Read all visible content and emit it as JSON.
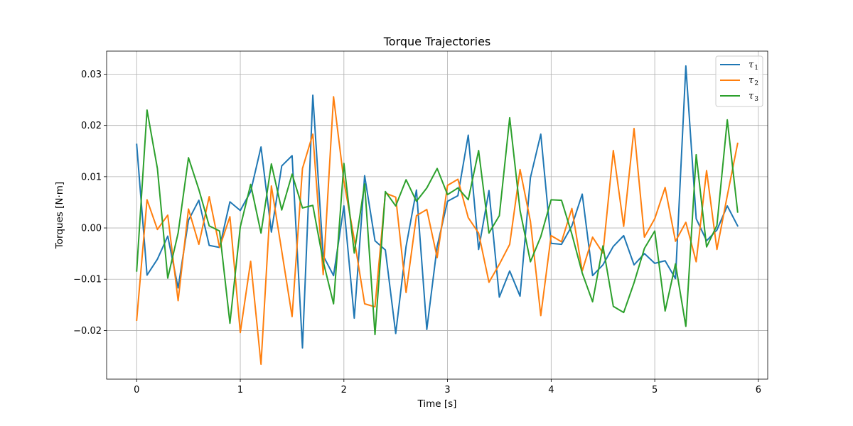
{
  "chart_data": {
    "type": "line",
    "title": "Torque Trajectories",
    "xlabel": "Time [s]",
    "ylabel": "Torques [N·m]",
    "xlim": [
      -0.29,
      6.09
    ],
    "ylim": [
      -0.0295,
      0.0345
    ],
    "xticks": [
      0,
      1,
      2,
      3,
      4,
      5,
      6
    ],
    "xtick_labels": [
      "0",
      "1",
      "2",
      "3",
      "4",
      "5",
      "6"
    ],
    "yticks": [
      -0.02,
      -0.01,
      0.0,
      0.01,
      0.02,
      0.03
    ],
    "ytick_labels": [
      "−0.02",
      "−0.01",
      "0.00",
      "0.01",
      "0.02",
      "0.03"
    ],
    "grid": true,
    "legend_position": "top-right",
    "x": [
      0.0,
      0.1,
      0.2,
      0.3,
      0.4,
      0.5,
      0.6,
      0.7,
      0.8,
      0.9,
      1.0,
      1.1,
      1.2,
      1.3,
      1.4,
      1.5,
      1.6,
      1.7,
      1.8,
      1.9,
      2.0,
      2.1,
      2.2,
      2.3,
      2.4,
      2.5,
      2.6,
      2.7,
      2.8,
      2.9,
      3.0,
      3.1,
      3.2,
      3.3,
      3.4,
      3.5,
      3.6,
      3.7,
      3.8,
      3.9,
      4.0,
      4.1,
      4.2,
      4.3,
      4.4,
      4.5,
      4.6,
      4.7,
      4.8,
      4.9,
      5.0,
      5.1,
      5.2,
      5.3,
      5.4,
      5.5,
      5.6,
      5.7,
      5.8
    ],
    "series": [
      {
        "name": "τ",
        "subscript": "1",
        "color": "#1f77b4",
        "values": [
          0.0163,
          -0.0092,
          -0.0061,
          -0.0016,
          -0.0117,
          0.0015,
          0.0054,
          -0.0034,
          -0.0038,
          0.0051,
          0.0034,
          0.0071,
          0.0158,
          -0.0008,
          0.0121,
          0.0141,
          -0.0234,
          0.0259,
          -0.0054,
          -0.0093,
          0.0043,
          -0.0176,
          0.0102,
          -0.0025,
          -0.0043,
          -0.0206,
          -0.0036,
          0.0074,
          -0.0198,
          -0.0036,
          0.0052,
          0.0063,
          0.0181,
          -0.0042,
          0.0073,
          -0.0135,
          -0.0084,
          -0.0133,
          0.0098,
          0.0183,
          -0.003,
          -0.0032,
          0.0004,
          0.0066,
          -0.0093,
          -0.0072,
          -0.0036,
          -0.0015,
          -0.0072,
          -0.005,
          -0.0069,
          -0.0064,
          -0.0099,
          0.0316,
          0.0018,
          -0.0025,
          -0.0004,
          0.0043,
          0.0004
        ]
      },
      {
        "name": "τ",
        "subscript": "2",
        "color": "#ff7f0e",
        "values": [
          -0.018,
          0.0055,
          -0.0003,
          0.0025,
          -0.0142,
          0.0037,
          -0.0032,
          0.0061,
          -0.0038,
          0.0022,
          -0.0204,
          -0.0065,
          -0.0266,
          0.0082,
          -0.0045,
          -0.0173,
          0.0116,
          0.0183,
          -0.0091,
          0.0256,
          0.0091,
          -0.0022,
          -0.0148,
          -0.0154,
          0.0068,
          0.006,
          -0.0126,
          0.0024,
          0.0036,
          -0.0058,
          0.0083,
          0.0095,
          0.002,
          -0.001,
          -0.0106,
          -0.0071,
          -0.0032,
          0.0114,
          0.0013,
          -0.0171,
          -0.0015,
          -0.0027,
          0.0038,
          -0.0084,
          -0.0018,
          -0.0049,
          0.0151,
          0.0003,
          0.0194,
          -0.0018,
          0.0018,
          0.0079,
          -0.0026,
          0.0011,
          -0.0066,
          0.0112,
          -0.0042,
          0.0063,
          0.0165
        ]
      },
      {
        "name": "τ",
        "subscript": "3",
        "color": "#2ca02c",
        "values": [
          -0.0084,
          0.023,
          0.0116,
          -0.0098,
          -0.001,
          0.0137,
          0.0075,
          0.0004,
          -0.0006,
          -0.0186,
          0.0002,
          0.0085,
          -0.001,
          0.0125,
          0.0035,
          0.0105,
          0.0039,
          0.0044,
          -0.0065,
          -0.0148,
          0.0126,
          -0.0049,
          0.0086,
          -0.0208,
          0.0071,
          0.0043,
          0.0094,
          0.0052,
          0.0078,
          0.0116,
          0.0065,
          0.0078,
          0.0055,
          0.0151,
          -0.001,
          0.0024,
          0.0215,
          0.0034,
          -0.0066,
          -0.0017,
          0.0055,
          0.0054,
          -0.0012,
          -0.0088,
          -0.0144,
          -0.0035,
          -0.0153,
          -0.0165,
          -0.0107,
          -0.004,
          -0.0006,
          -0.0162,
          -0.007,
          -0.0192,
          0.0143,
          -0.0037,
          0.0005,
          0.0211,
          0.0031
        ]
      }
    ]
  }
}
